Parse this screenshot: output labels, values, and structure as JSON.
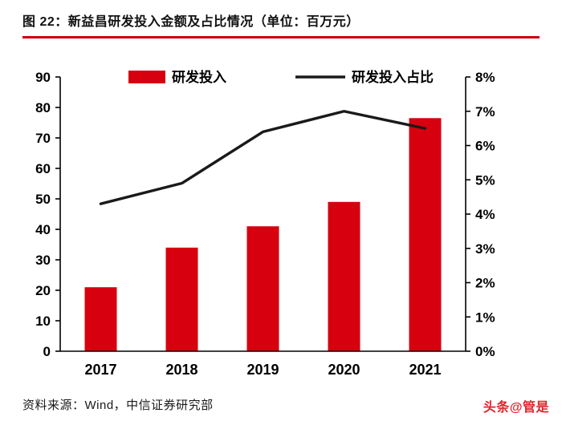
{
  "header": {
    "title": "图 22：新益昌研发投入金额及占比情况（单位：百万元）"
  },
  "footer": {
    "source": "资料来源：Wind，中信证券研究部",
    "watermark": "头条@管是"
  },
  "colors": {
    "bar_red": "#d7000f",
    "line_black": "#1a1a1a",
    "rule_red": "#c9000d",
    "axis": "#000000"
  },
  "chart_data": {
    "type": "bar",
    "subtype": "bar+line combo, dual axis",
    "categories": [
      "2017",
      "2018",
      "2019",
      "2020",
      "2021"
    ],
    "series": [
      {
        "name": "研发投入",
        "type": "bar",
        "axis": "left",
        "color": "#d7000f",
        "values": [
          21,
          34,
          41,
          49,
          76.5
        ]
      },
      {
        "name": "研发投入占比",
        "type": "line",
        "axis": "right",
        "color": "#1a1a1a",
        "values": [
          4.3,
          4.9,
          6.4,
          7.0,
          6.5
        ]
      }
    ],
    "left_axis": {
      "min": 0,
      "max": 90,
      "step": 10,
      "ticks": [
        "0",
        "10",
        "20",
        "30",
        "40",
        "50",
        "60",
        "70",
        "80",
        "90"
      ]
    },
    "right_axis": {
      "min": 0,
      "max": 8,
      "step": 1,
      "ticks": [
        "0%",
        "1%",
        "2%",
        "3%",
        "4%",
        "5%",
        "6%",
        "7%",
        "8%"
      ]
    },
    "title": "新益昌研发投入金额及占比情况（单位：百万元）",
    "xlabel": "",
    "ylabel": "",
    "grid": false,
    "legend_position": "top-center",
    "legend": [
      {
        "label": "研发投入",
        "marker": "bar",
        "color": "#d7000f"
      },
      {
        "label": "研发投入占比",
        "marker": "line",
        "color": "#1a1a1a"
      }
    ]
  }
}
